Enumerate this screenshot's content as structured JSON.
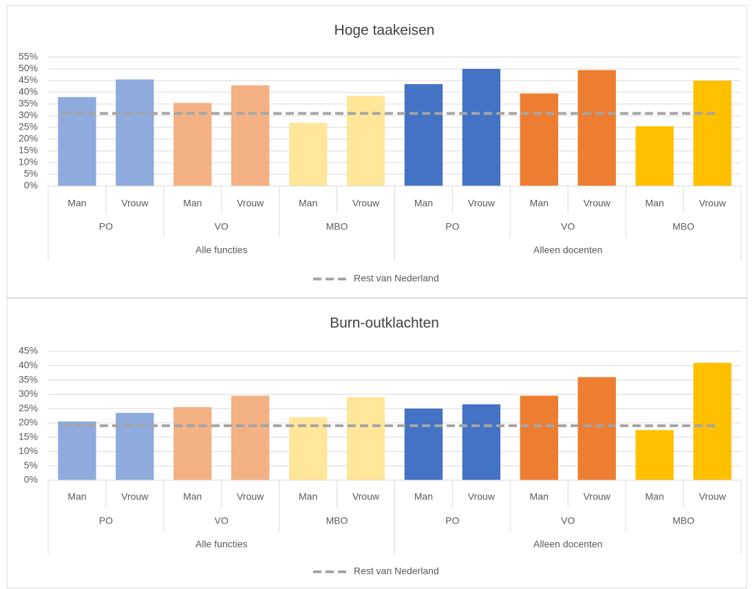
{
  "chart_data": [
    {
      "type": "bar",
      "title": "Hoge taakeisen",
      "categories": [
        "Man",
        "Vrouw",
        "Man",
        "Vrouw",
        "Man",
        "Vrouw",
        "Man",
        "Vrouw",
        "Man",
        "Vrouw",
        "Man",
        "Vrouw"
      ],
      "subgroups": [
        "PO",
        "VO",
        "MBO",
        "PO",
        "VO",
        "MBO"
      ],
      "groups": [
        "Alle functies",
        "Alleen docenten"
      ],
      "values": [
        38,
        45.5,
        35.5,
        43,
        27,
        38.5,
        43.5,
        50,
        39.5,
        49.5,
        25.5,
        45
      ],
      "colors": [
        "#8faadc",
        "#8faadc",
        "#f4b183",
        "#f4b183",
        "#ffe699",
        "#ffe699",
        "#4472c4",
        "#4472c4",
        "#ed7d31",
        "#ed7d31",
        "#ffc000",
        "#ffc000"
      ],
      "reference": {
        "name": "Rest van Nederland",
        "value": 31,
        "color": "#a5a5a5"
      },
      "ylim": [
        0,
        55
      ],
      "yticks": [
        {
          "value": 0,
          "label": "0%"
        },
        {
          "value": 5,
          "label": "5%"
        },
        {
          "value": 10,
          "label": "10%"
        },
        {
          "value": 15,
          "label": "15%"
        },
        {
          "value": 20,
          "label": "20%"
        },
        {
          "value": 25,
          "label": "25%"
        },
        {
          "value": 30,
          "label": "30%"
        },
        {
          "value": 35,
          "label": "35%"
        },
        {
          "value": 40,
          "label": "40%"
        },
        {
          "value": 45,
          "label": "45%"
        },
        {
          "value": 50,
          "label": "50%"
        },
        {
          "value": 55,
          "label": "55%"
        }
      ],
      "grid": true,
      "legend": "bottom"
    },
    {
      "type": "bar",
      "title": "Burn-outklachten",
      "categories": [
        "Man",
        "Vrouw",
        "Man",
        "Vrouw",
        "Man",
        "Vrouw",
        "Man",
        "Vrouw",
        "Man",
        "Vrouw",
        "Man",
        "Vrouw"
      ],
      "subgroups": [
        "PO",
        "VO",
        "MBO",
        "PO",
        "VO",
        "MBO"
      ],
      "groups": [
        "Alle functies",
        "Alleen docenten"
      ],
      "values": [
        20.5,
        23.5,
        25.5,
        29.5,
        22,
        29,
        25,
        26.5,
        29.5,
        36,
        17.5,
        41
      ],
      "colors": [
        "#8faadc",
        "#8faadc",
        "#f4b183",
        "#f4b183",
        "#ffe699",
        "#ffe699",
        "#4472c4",
        "#4472c4",
        "#ed7d31",
        "#ed7d31",
        "#ffc000",
        "#ffc000"
      ],
      "reference": {
        "name": "Rest van Nederland",
        "value": 19,
        "color": "#a5a5a5"
      },
      "ylim": [
        0,
        45
      ],
      "yticks": [
        {
          "value": 0,
          "label": "0%"
        },
        {
          "value": 5,
          "label": "5%"
        },
        {
          "value": 10,
          "label": "10%"
        },
        {
          "value": 15,
          "label": "15%"
        },
        {
          "value": 20,
          "label": "20%"
        },
        {
          "value": 25,
          "label": "25%"
        },
        {
          "value": 30,
          "label": "30%"
        },
        {
          "value": 35,
          "label": "35%"
        },
        {
          "value": 40,
          "label": "40%"
        },
        {
          "value": 45,
          "label": "45%"
        }
      ],
      "grid": true,
      "legend": "bottom"
    }
  ]
}
